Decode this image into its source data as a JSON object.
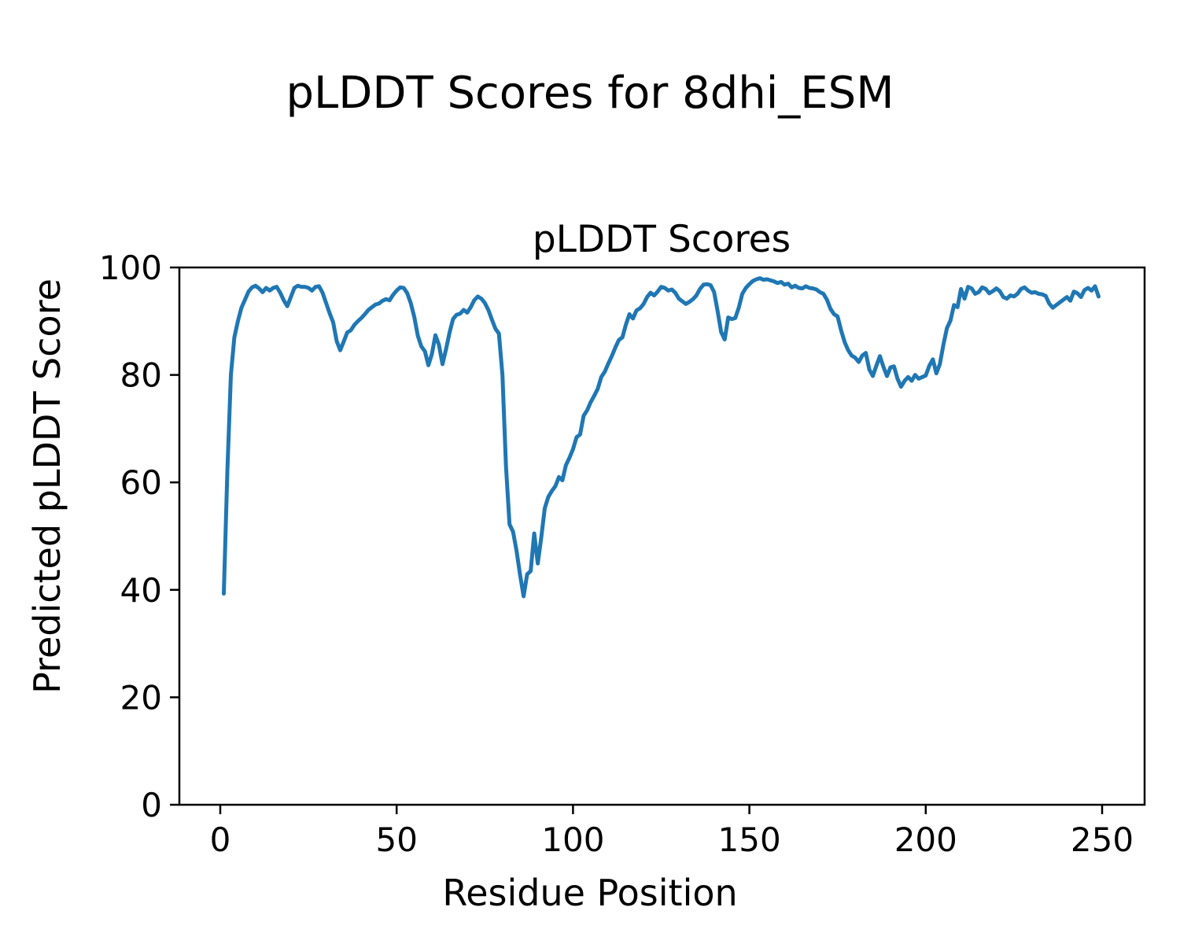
{
  "figure": {
    "suptitle": "pLDDT Scores for 8dhi_ESM",
    "background": "#ffffff",
    "text_color": "#000000"
  },
  "chart_data": {
    "type": "line",
    "title": "pLDDT Scores",
    "xlabel": "Residue Position",
    "ylabel": "Predicted pLDDT Score",
    "x_ticks": [
      0,
      50,
      100,
      150,
      200,
      250
    ],
    "y_ticks": [
      0,
      20,
      40,
      60,
      80,
      100
    ],
    "xlim": [
      -11.4,
      261.4
    ],
    "ylim": [
      0,
      100
    ],
    "grid": false,
    "legend": "none",
    "line_color": "#1f77b4",
    "line_width": 5,
    "x": [
      1,
      2,
      3,
      4,
      5,
      6,
      7,
      8,
      9,
      10,
      11,
      12,
      13,
      14,
      15,
      16,
      17,
      18,
      19,
      20,
      21,
      22,
      23,
      24,
      25,
      26,
      27,
      28,
      29,
      30,
      31,
      32,
      33,
      34,
      35,
      36,
      37,
      38,
      39,
      40,
      41,
      42,
      43,
      44,
      45,
      46,
      47,
      48,
      49,
      50,
      51,
      52,
      53,
      54,
      55,
      56,
      57,
      58,
      59,
      60,
      61,
      62,
      63,
      64,
      65,
      66,
      67,
      68,
      69,
      70,
      71,
      72,
      73,
      74,
      75,
      76,
      77,
      78,
      79,
      80,
      81,
      82,
      83,
      84,
      85,
      86,
      87,
      88,
      89,
      90,
      91,
      92,
      93,
      94,
      95,
      96,
      97,
      98,
      99,
      100,
      101,
      102,
      103,
      104,
      105,
      106,
      107,
      108,
      109,
      110,
      111,
      112,
      113,
      114,
      115,
      116,
      117,
      118,
      119,
      120,
      121,
      122,
      123,
      124,
      125,
      126,
      127,
      128,
      129,
      130,
      131,
      132,
      133,
      134,
      135,
      136,
      137,
      138,
      139,
      140,
      141,
      142,
      143,
      144,
      145,
      146,
      147,
      148,
      149,
      150,
      151,
      152,
      153,
      154,
      155,
      156,
      157,
      158,
      159,
      160,
      161,
      162,
      163,
      164,
      165,
      166,
      167,
      168,
      169,
      170,
      171,
      172,
      173,
      174,
      175,
      176,
      177,
      178,
      179,
      180,
      181,
      182,
      183,
      184,
      185,
      186,
      187,
      188,
      189,
      190,
      191,
      192,
      193,
      194,
      195,
      196,
      197,
      198,
      199,
      200,
      201,
      202,
      203,
      204,
      205,
      206,
      207,
      208,
      209,
      210,
      211,
      212,
      213,
      214,
      215,
      216,
      217,
      218,
      219,
      220,
      221,
      222,
      223,
      224,
      225,
      226,
      227,
      228,
      229,
      230,
      231,
      232,
      233,
      234,
      235,
      236,
      237,
      238,
      239,
      240,
      241,
      242,
      243,
      244,
      245,
      246,
      247,
      248,
      249
    ],
    "values": [
      39.3,
      62,
      80,
      87,
      90,
      92.5,
      94,
      95.5,
      96.3,
      96.6,
      96.1,
      95.4,
      96.2,
      95.7,
      96.2,
      96.4,
      95.3,
      93.9,
      92.8,
      94.5,
      96.2,
      96.6,
      96.4,
      96.4,
      96.2,
      95.7,
      96.4,
      96.5,
      95.3,
      93.4,
      91.5,
      89.8,
      86.3,
      84.6,
      86.2,
      87.9,
      88.3,
      89.3,
      90,
      90.6,
      91.3,
      92.1,
      92.6,
      93.1,
      93.3,
      93.8,
      94.1,
      93.9,
      94.9,
      95.7,
      96.3,
      96.2,
      95.2,
      93.4,
      90.8,
      87.3,
      85.3,
      84.4,
      81.8,
      83.9,
      87.4,
      85.6,
      82,
      84.8,
      87.9,
      90.4,
      91.2,
      91.4,
      92.1,
      91.6,
      92.6,
      93.9,
      94.6,
      94.2,
      93.4,
      92.1,
      90.3,
      88.6,
      87.7,
      80,
      63,
      52.2,
      50.8,
      47.2,
      42.8,
      38.8,
      42.9,
      43.5,
      50.5,
      44.9,
      49.7,
      55.2,
      57.3,
      58.4,
      59.3,
      61,
      60.4,
      63.2,
      64.6,
      66.2,
      68.4,
      68.9,
      72.4,
      73.4,
      74.9,
      76.1,
      77.4,
      79.6,
      80.6,
      82.1,
      83.5,
      85.1,
      86.5,
      87,
      89.4,
      91.3,
      90.5,
      92,
      92.4,
      93.2,
      94.5,
      95.3,
      94.8,
      95.5,
      96.4,
      96.2,
      95.7,
      95.9,
      95.3,
      94.2,
      93.7,
      93.2,
      93.6,
      94.1,
      94.8,
      96,
      96.8,
      96.9,
      96.7,
      95.4,
      91.9,
      88,
      86.6,
      90.7,
      90.4,
      90.6,
      92.5,
      95.1,
      96.2,
      96.9,
      97.5,
      97.8,
      98,
      97.7,
      97.8,
      97.6,
      97.4,
      97.1,
      97.3,
      96.8,
      97,
      96.3,
      96.6,
      96.2,
      96.1,
      96.5,
      96.2,
      96.1,
      95.9,
      95.4,
      95.1,
      94,
      92.3,
      91.3,
      90.9,
      88.3,
      86.1,
      84.6,
      83.6,
      83.2,
      82.4,
      83.6,
      84.1,
      81,
      79.8,
      81.7,
      83.5,
      81.5,
      79.8,
      81.4,
      81.6,
      79.3,
      77.8,
      78.9,
      79.6,
      78.9,
      80,
      79.3,
      79.6,
      79.9,
      81.7,
      82.9,
      80.3,
      82,
      85.6,
      88.7,
      90.1,
      93,
      92.6,
      96,
      94.2,
      96.4,
      96.1,
      95.1,
      95.4,
      96.3,
      96,
      95.2,
      95.6,
      96.1,
      95.6,
      94.5,
      94.2,
      94.8,
      94.6,
      95.1,
      96,
      96.3,
      95.7,
      95.3,
      95.4,
      95.1,
      95,
      94.7,
      93.3,
      92.5,
      93,
      93.5,
      94,
      94.5,
      93.8,
      95.5,
      95.2,
      94.5,
      95.8,
      96.2,
      95.7,
      96.5,
      94.6
    ]
  }
}
